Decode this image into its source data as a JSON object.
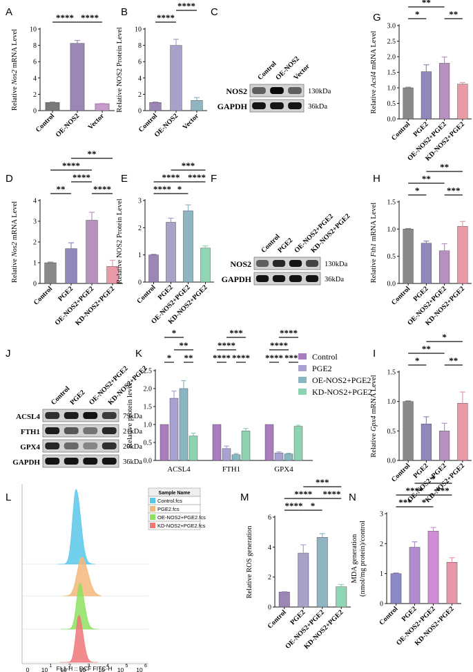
{
  "figure": {
    "background": "#ffffff"
  },
  "chart_data": [
    {
      "panel": "A",
      "type": "bar",
      "ylabel_parts": [
        "Relative ",
        "Nos2",
        " mRNA Level"
      ],
      "ylim": [
        0,
        10
      ],
      "yticks": [
        0,
        2,
        4,
        6,
        8,
        10
      ],
      "categories": [
        "Control",
        "OE-NOS2",
        "Vector"
      ],
      "values": [
        1.0,
        8.25,
        0.85
      ],
      "errors": [
        0.04,
        0.35,
        0.04
      ],
      "colors": [
        "#7a7a7a",
        "#9b86b6",
        "#c79bcc"
      ],
      "sig": [
        {
          "from": 0,
          "to": 1,
          "label": "****",
          "level": 0
        },
        {
          "from": 1,
          "to": 2,
          "label": "****",
          "level": 0
        }
      ]
    },
    {
      "panel": "B",
      "type": "bar",
      "ylabel_parts": [
        "Relative NOS2 Protein Level"
      ],
      "ylim": [
        0,
        10
      ],
      "yticks": [
        0,
        2,
        4,
        6,
        8,
        10
      ],
      "categories": [
        "Control",
        "OE-NOS2",
        "Vector"
      ],
      "values": [
        1.0,
        8.0,
        1.25
      ],
      "errors": [
        0.05,
        0.75,
        0.35
      ],
      "colors": [
        "#9b86b6",
        "#a8a2c8",
        "#8fb4c2"
      ],
      "sig": [
        {
          "from": 0,
          "to": 1,
          "label": "****",
          "level": 0
        },
        {
          "from": 1,
          "to": 2,
          "label": "****",
          "level": 1
        }
      ]
    },
    {
      "panel": "G",
      "type": "bar",
      "ylabel_parts": [
        "Relative ",
        "Acsl4",
        " mRNA Level"
      ],
      "ylim": [
        0,
        3.0
      ],
      "yticks": [
        0.0,
        0.5,
        1.0,
        1.5,
        2.0,
        2.5,
        3.0
      ],
      "categories": [
        "Control",
        "PGE2",
        "OE-NOS2+PGE2",
        "KD-NOS2+PGE2"
      ],
      "values": [
        1.0,
        1.52,
        1.79,
        1.12
      ],
      "errors": [
        0.02,
        0.22,
        0.2,
        0.05
      ],
      "colors": [
        "#8a8a8a",
        "#8f88bb",
        "#b690bf",
        "#e89aa6"
      ],
      "sig": [
        {
          "from": 0,
          "to": 1,
          "label": "*",
          "level": 0
        },
        {
          "from": 2,
          "to": 3,
          "label": "**",
          "level": 0
        },
        {
          "from": 0,
          "to": 2,
          "label": "**",
          "level": 1
        },
        {
          "from": 1,
          "to": 3,
          "label": "*",
          "level": 2
        }
      ]
    },
    {
      "panel": "D",
      "type": "bar",
      "ylabel_parts": [
        "Relative ",
        "Nos2",
        " mRNA Level"
      ],
      "ylim": [
        0,
        4
      ],
      "yticks": [
        0,
        1,
        2,
        3,
        4
      ],
      "categories": [
        "Control",
        "PGE2",
        "OE-NOS2+PGE2",
        "KD-NOS2+PGE2"
      ],
      "values": [
        1.0,
        1.68,
        3.05,
        0.82
      ],
      "errors": [
        0.03,
        0.28,
        0.38,
        0.3
      ],
      "colors": [
        "#8a8a8a",
        "#8f88bb",
        "#b690bf",
        "#e89aa6"
      ],
      "sig": [
        {
          "from": 0,
          "to": 1,
          "label": "**",
          "level": 0
        },
        {
          "from": 2,
          "to": 3,
          "label": "****",
          "level": 0
        },
        {
          "from": 1,
          "to": 2,
          "label": "****",
          "level": 1
        },
        {
          "from": 0,
          "to": 2,
          "label": "****",
          "level": 2
        },
        {
          "from": 1,
          "to": 3,
          "label": "**",
          "level": 3
        }
      ]
    },
    {
      "panel": "E",
      "type": "bar",
      "ylabel_parts": [
        "Relative NOS2 Protein Level"
      ],
      "ylim": [
        0,
        3
      ],
      "yticks": [
        0,
        1,
        2,
        3
      ],
      "categories": [
        "Control",
        "PGE2",
        "OE-NOS2+PGE2",
        "KD-NOS2+PGE2"
      ],
      "values": [
        1.0,
        2.2,
        2.62,
        1.25
      ],
      "errors": [
        0.02,
        0.15,
        0.22,
        0.08
      ],
      "colors": [
        "#9b86b6",
        "#a8a2c8",
        "#8fb4c2",
        "#90d6b4"
      ],
      "sig": [
        {
          "from": 0,
          "to": 1,
          "label": "****",
          "level": 0
        },
        {
          "from": 1,
          "to": 2,
          "label": "*",
          "level": 0
        },
        {
          "from": 0,
          "to": 2,
          "label": "****",
          "level": 1
        },
        {
          "from": 2,
          "to": 3,
          "label": "****",
          "level": 1
        },
        {
          "from": 1,
          "to": 3,
          "label": "***",
          "level": 2
        }
      ]
    },
    {
      "panel": "H",
      "type": "bar",
      "ylabel_parts": [
        "Relative ",
        "Fth1",
        " mRNA Level"
      ],
      "ylim": [
        0,
        1.5
      ],
      "yticks": [
        0.0,
        0.5,
        1.0,
        1.5
      ],
      "categories": [
        "Control",
        "PGE2",
        "OE-NOS2+PGE2",
        "KD-NOS2+PGE2"
      ],
      "values": [
        1.0,
        0.74,
        0.6,
        1.05
      ],
      "errors": [
        0.01,
        0.04,
        0.13,
        0.09
      ],
      "colors": [
        "#8a8a8a",
        "#8f88bb",
        "#b690bf",
        "#e89aa6"
      ],
      "sig": [
        {
          "from": 0,
          "to": 1,
          "label": "*",
          "level": 0
        },
        {
          "from": 2,
          "to": 3,
          "label": "***",
          "level": 0
        },
        {
          "from": 0,
          "to": 2,
          "label": "**",
          "level": 1
        },
        {
          "from": 1,
          "to": 3,
          "label": "**",
          "level": 2
        }
      ]
    },
    {
      "panel": "I",
      "type": "bar",
      "ylabel_parts": [
        "Relative ",
        "Gpx4",
        " mRNA Level"
      ],
      "ylim": [
        0,
        1.5
      ],
      "yticks": [
        0.0,
        0.5,
        1.0,
        1.5
      ],
      "categories": [
        "Control",
        "PGE2",
        "OE-NOS2+PGE2",
        "KD-NOS2+PGE2"
      ],
      "values": [
        1.0,
        0.62,
        0.5,
        0.97
      ],
      "errors": [
        0.01,
        0.12,
        0.13,
        0.19
      ],
      "colors": [
        "#8a8a8a",
        "#8f88bb",
        "#b690bf",
        "#e89aa6"
      ],
      "sig": [
        {
          "from": 0,
          "to": 1,
          "label": "*",
          "level": 0
        },
        {
          "from": 2,
          "to": 3,
          "label": "**",
          "level": 0
        },
        {
          "from": 0,
          "to": 2,
          "label": "**",
          "level": 1
        },
        {
          "from": 1,
          "to": 3,
          "label": "*",
          "level": 2
        }
      ]
    },
    {
      "panel": "M",
      "type": "bar",
      "ylabel_parts": [
        "Relative ROS generation"
      ],
      "ylim": [
        0,
        6
      ],
      "yticks": [
        0,
        2,
        4,
        6
      ],
      "categories": [
        "Control",
        "PGE2",
        "OE-NOS2+PGE2",
        "KD-NOS2+PGE2"
      ],
      "values": [
        1.0,
        3.6,
        4.65,
        1.35
      ],
      "errors": [
        0.02,
        0.55,
        0.25,
        0.15
      ],
      "colors": [
        "#9b86b6",
        "#a8a2c8",
        "#8fb4c2",
        "#90d6b4"
      ],
      "sig": [
        {
          "from": 0,
          "to": 1,
          "label": "****",
          "level": 0
        },
        {
          "from": 1,
          "to": 2,
          "label": "*",
          "level": 0
        },
        {
          "from": 0,
          "to": 2,
          "label": "****",
          "level": 1
        },
        {
          "from": 2,
          "to": 3,
          "label": "****",
          "level": 1
        },
        {
          "from": 1,
          "to": 3,
          "label": "***",
          "level": 2
        }
      ]
    },
    {
      "panel": "N",
      "type": "bar",
      "ylabel_lines": [
        "MDA generation",
        "(nmol/mg protein)/control"
      ],
      "ylim": [
        0,
        3
      ],
      "yticks": [
        0,
        1,
        2,
        3
      ],
      "categories": [
        "Control",
        "PGE2",
        "OE-NOS2+PGE2",
        "KD-NOS2+PGE2"
      ],
      "values": [
        1.0,
        1.88,
        2.42,
        1.38
      ],
      "errors": [
        0.02,
        0.18,
        0.12,
        0.15
      ],
      "colors": [
        "#8b89c4",
        "#b08bd0",
        "#cf8ed3",
        "#e797a8"
      ],
      "sig": [
        {
          "from": 0,
          "to": 1,
          "label": "***",
          "level": 0
        },
        {
          "from": 1,
          "to": 2,
          "label": "*",
          "level": 0
        },
        {
          "from": 0,
          "to": 2,
          "label": "****",
          "level": 1
        },
        {
          "from": 2,
          "to": 3,
          "label": "***",
          "level": 1
        },
        {
          "from": 1,
          "to": 3,
          "label": "*",
          "level": 2
        }
      ]
    },
    {
      "panel": "K",
      "type": "grouped-bar",
      "ylabel": "Relative protein  level",
      "ylim": [
        0,
        2.5
      ],
      "yticks": [
        0.0,
        0.5,
        1.0,
        1.5,
        2.0,
        2.5
      ],
      "categories": [
        "ACSL4",
        "FTH1",
        "GPX4"
      ],
      "series": [
        {
          "name": "Control",
          "values": [
            1.0,
            1.0,
            1.0
          ],
          "errors": [
            0,
            0,
            0
          ],
          "color": "#a87cbf"
        },
        {
          "name": "PGE2",
          "values": [
            1.73,
            0.33,
            0.21
          ],
          "errors": [
            0.2,
            0.07,
            0.03
          ],
          "color": "#a8a2d2"
        },
        {
          "name": "OE-NOS2+PGE2",
          "values": [
            2.0,
            0.16,
            0.18
          ],
          "errors": [
            0.22,
            0.03,
            0.02
          ],
          "color": "#8ab6c2"
        },
        {
          "name": "KD-NOS2+PGE2",
          "values": [
            0.68,
            0.82,
            0.95
          ],
          "errors": [
            0.08,
            0.07,
            0.03
          ],
          "color": "#8ed3b1"
        }
      ],
      "sig": [
        {
          "group": 0,
          "from": 0,
          "to": 1,
          "label": "*",
          "level": 0
        },
        {
          "group": 0,
          "from": 2,
          "to": 3,
          "label": "**",
          "level": 0
        },
        {
          "group": 0,
          "from": 1,
          "to": 3,
          "label": "**",
          "level": 1
        },
        {
          "group": 0,
          "from": 0,
          "to": 2,
          "label": "*",
          "level": 2
        },
        {
          "group": 1,
          "from": 0,
          "to": 1,
          "label": "****",
          "level": 0
        },
        {
          "group": 1,
          "from": 2,
          "to": 3,
          "label": "****",
          "level": 0
        },
        {
          "group": 1,
          "from": 0,
          "to": 2,
          "label": "****",
          "level": 1
        },
        {
          "group": 1,
          "from": 1,
          "to": 3,
          "label": "***",
          "level": 2
        },
        {
          "group": 2,
          "from": 0,
          "to": 1,
          "label": "****",
          "level": 0
        },
        {
          "group": 2,
          "from": 2,
          "to": 3,
          "label": "****",
          "level": 0
        },
        {
          "group": 2,
          "from": 0,
          "to": 2,
          "label": "****",
          "level": 1
        },
        {
          "group": 2,
          "from": 1,
          "to": 3,
          "label": "****",
          "level": 2
        }
      ]
    },
    {
      "panel": "L",
      "type": "histogram-overlay",
      "legend_title": "Sample Name",
      "legend": [
        {
          "name": "Control.fcs",
          "color": "#5bc8ea"
        },
        {
          "name": "PGE2.fcs",
          "color": "#f4b77b"
        },
        {
          "name": "OE-NOS2+PGE2.fcs",
          "color": "#8ee060"
        },
        {
          "name": "KD-NOS2+PGE2.fcs",
          "color": "#f0777a"
        }
      ],
      "peaks_log10": [
        2.55,
        2.85,
        2.75,
        2.7
      ],
      "x_ticks": [
        "0",
        "10",
        "1",
        "10",
        "2",
        "10",
        "3",
        "10",
        "4",
        "10",
        "5",
        "10",
        "6"
      ],
      "xlabel": "FL1-H :: DCF FITC-H"
    }
  ],
  "blots": [
    {
      "panel": "C",
      "lanes": [
        "Control",
        "OE-NOS2",
        "Vector"
      ],
      "rows": [
        {
          "label": "NOS2",
          "kda": "130kDa",
          "intensity": [
            0.55,
            1.0,
            0.55
          ]
        },
        {
          "label": "GAPDH",
          "kda": "36kDa",
          "intensity": [
            0.95,
            0.95,
            0.95
          ]
        }
      ]
    },
    {
      "panel": "F",
      "lanes": [
        "Control",
        "PGE2",
        "OE-NOS2+PGE2",
        "KD-NOS2+PGE2"
      ],
      "rows": [
        {
          "label": "NOS2",
          "kda": "130kDa",
          "intensity": [
            0.55,
            0.85,
            0.95,
            0.7
          ]
        },
        {
          "label": "GAPDH",
          "kda": "36kDa",
          "intensity": [
            0.95,
            0.95,
            0.95,
            0.95
          ]
        }
      ]
    },
    {
      "panel": "J",
      "lanes": [
        "Control",
        "PGE2",
        "OE-NOS2+PGE2",
        "KD-NOS2+PGE2"
      ],
      "rows": [
        {
          "label": "ACSL4",
          "kda": "79kDa",
          "intensity": [
            0.8,
            0.9,
            0.95,
            0.75
          ]
        },
        {
          "label": "FTH1",
          "kda": "21kDa",
          "intensity": [
            0.9,
            0.6,
            0.45,
            0.85
          ]
        },
        {
          "label": "GPX4",
          "kda": "20kDa",
          "intensity": [
            0.85,
            0.5,
            0.35,
            0.8
          ]
        },
        {
          "label": "GAPDH",
          "kda": "36kDa",
          "intensity": [
            0.95,
            0.95,
            0.95,
            0.95
          ]
        }
      ]
    }
  ]
}
